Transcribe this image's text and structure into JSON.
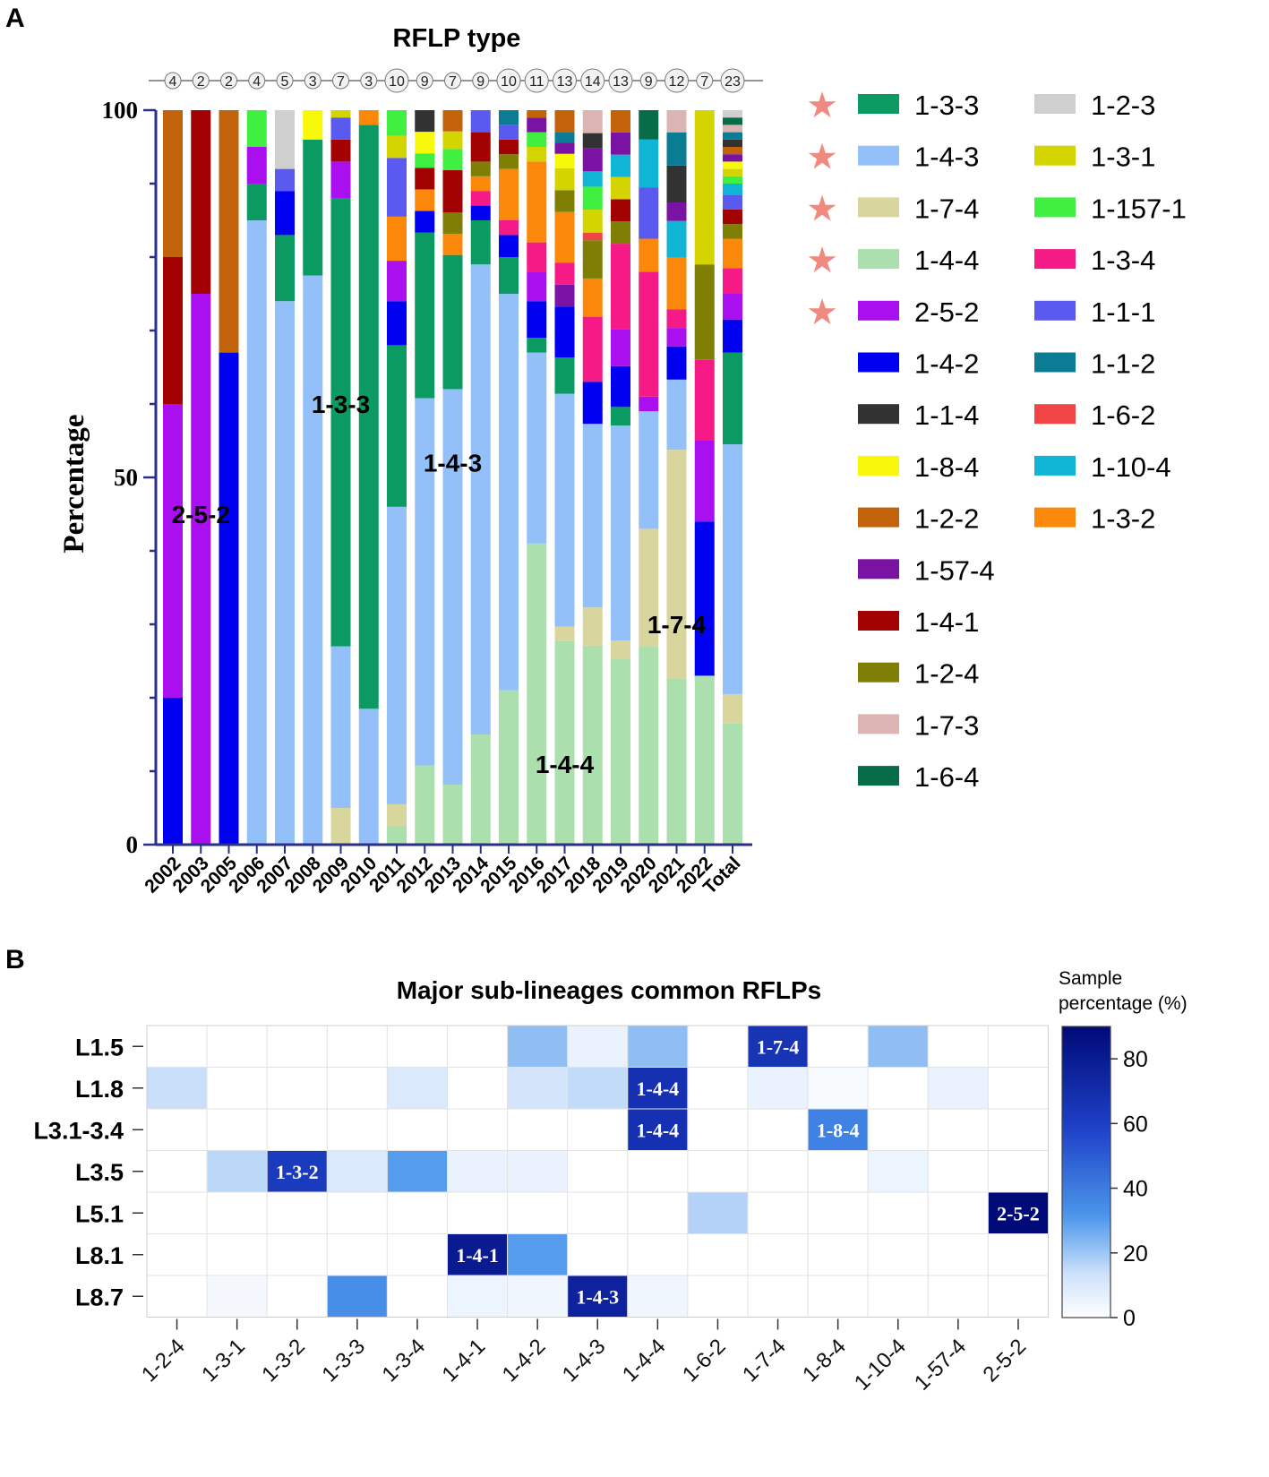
{
  "panels": {
    "a": "A",
    "b": "B"
  },
  "chart_data": [
    {
      "type": "bar",
      "stacked": true,
      "title": "RFLP type",
      "xlabel": "",
      "ylabel": "Percentage",
      "ylim": [
        0,
        100
      ],
      "yticks": [
        "0",
        "50",
        "100"
      ],
      "categories": [
        "2002",
        "2003",
        "2005",
        "2006",
        "2007",
        "2008",
        "2009",
        "2010",
        "2011",
        "2012",
        "2013",
        "2014",
        "2015",
        "2016",
        "2017",
        "2018",
        "2019",
        "2020",
        "2021",
        "2022",
        "Total"
      ],
      "sample_counts": [
        "4",
        "2",
        "2",
        "4",
        "5",
        "3",
        "7",
        "3",
        "10",
        "9",
        "7",
        "9",
        "10",
        "11",
        "13",
        "14",
        "13",
        "9",
        "12",
        "7",
        "23"
      ],
      "legend": [
        {
          "name": "1-3-3",
          "color": "#0a9a62",
          "star": true
        },
        {
          "name": "1-4-3",
          "color": "#93c0f8",
          "star": true
        },
        {
          "name": "1-7-4",
          "color": "#d8d69c",
          "star": true
        },
        {
          "name": "1-4-4",
          "color": "#abdfae",
          "star": true
        },
        {
          "name": "2-5-2",
          "color": "#aa0fef",
          "star": true
        },
        {
          "name": "1-4-2",
          "color": "#0000f0",
          "star": false
        },
        {
          "name": "1-1-4",
          "color": "#323232",
          "star": false
        },
        {
          "name": "1-8-4",
          "color": "#f8f80a",
          "star": false
        },
        {
          "name": "1-2-2",
          "color": "#c2620b",
          "star": false
        },
        {
          "name": "1-57-4",
          "color": "#7a12a4",
          "star": false
        },
        {
          "name": "1-4-1",
          "color": "#a20202",
          "star": false
        },
        {
          "name": "1-2-4",
          "color": "#7f7f05",
          "star": false
        },
        {
          "name": "1-7-3",
          "color": "#ddb4b4",
          "star": false
        },
        {
          "name": "1-6-4",
          "color": "#066d48",
          "star": false
        },
        {
          "name": "1-2-3",
          "color": "#cfcfcf",
          "star": false
        },
        {
          "name": "1-3-1",
          "color": "#d4d400",
          "star": false
        },
        {
          "name": "1-157-1",
          "color": "#40f040",
          "star": false
        },
        {
          "name": "1-3-4",
          "color": "#f51a86",
          "star": false
        },
        {
          "name": "1-1-1",
          "color": "#5a5af0",
          "star": false
        },
        {
          "name": "1-1-2",
          "color": "#0a7d94",
          "star": false
        },
        {
          "name": "1-6-2",
          "color": "#f14545",
          "star": false
        },
        {
          "name": "1-10-4",
          "color": "#10b4d4",
          "star": false
        },
        {
          "name": "1-3-2",
          "color": "#fb880a",
          "star": false
        }
      ],
      "series_stacks": [
        [
          [
            "1-4-2",
            20
          ],
          [
            "2-5-2",
            40
          ],
          [
            "1-4-1",
            20
          ],
          [
            "1-2-2",
            20
          ]
        ],
        [
          [
            "2-5-2",
            75
          ],
          [
            "1-4-1",
            25
          ]
        ],
        [
          [
            "1-4-2",
            67
          ],
          [
            "1-2-2",
            33
          ]
        ],
        [
          [
            "1-4-3",
            85
          ],
          [
            "1-3-3",
            5
          ],
          [
            "2-5-2",
            5
          ],
          [
            "1-157-1",
            5
          ]
        ],
        [
          [
            "1-4-3",
            74
          ],
          [
            "1-3-3",
            9
          ],
          [
            "1-4-2",
            6
          ],
          [
            "1-1-1",
            3
          ],
          [
            "1-2-3",
            8
          ]
        ],
        [
          [
            "1-4-3",
            77.5
          ],
          [
            "1-3-3",
            18.5
          ],
          [
            "1-8-4",
            4
          ]
        ],
        [
          [
            "1-7-4",
            5
          ],
          [
            "1-4-3",
            22
          ],
          [
            "1-3-3",
            61
          ],
          [
            "2-5-2",
            5
          ],
          [
            "1-4-1",
            3
          ],
          [
            "1-1-1",
            3
          ],
          [
            "1-3-1",
            1
          ]
        ],
        [
          [
            "1-4-3",
            18.5
          ],
          [
            "1-3-3",
            79.5
          ],
          [
            "1-3-2",
            2
          ]
        ],
        [
          [
            "1-4-4",
            2.5
          ],
          [
            "1-7-4",
            3
          ],
          [
            "1-4-3",
            40.5
          ],
          [
            "1-3-3",
            22
          ],
          [
            "1-4-2",
            6
          ],
          [
            "2-5-2",
            5.5
          ],
          [
            "1-3-2",
            6
          ],
          [
            "1-1-1",
            8
          ],
          [
            "1-3-1",
            3
          ],
          [
            "1-157-1",
            3.5
          ]
        ],
        [
          [
            "1-4-4",
            11
          ],
          [
            "1-4-3",
            51
          ],
          [
            "1-3-3",
            23
          ],
          [
            "1-4-2",
            3
          ],
          [
            "1-3-2",
            3
          ],
          [
            "1-4-1",
            3
          ],
          [
            "1-157-1",
            2
          ],
          [
            "1-8-4",
            3
          ],
          [
            "1-1-4",
            3
          ]
        ],
        [
          [
            "1-4-4",
            8.5
          ],
          [
            "1-4-3",
            56
          ],
          [
            "1-3-3",
            19
          ],
          [
            "1-3-2",
            3
          ],
          [
            "1-2-4",
            3
          ],
          [
            "1-4-1",
            6
          ],
          [
            "1-157-1",
            3
          ],
          [
            "1-3-1",
            2.5
          ],
          [
            "1-2-2",
            3
          ]
        ],
        [
          [
            "1-4-4",
            15
          ],
          [
            "1-4-3",
            64
          ],
          [
            "1-3-3",
            6
          ],
          [
            "1-4-2",
            2
          ],
          [
            "1-3-4",
            2
          ],
          [
            "1-3-2",
            2
          ],
          [
            "1-2-4",
            2
          ],
          [
            "1-4-1",
            4
          ],
          [
            "1-1-1",
            3
          ]
        ],
        [
          [
            "1-4-4",
            21
          ],
          [
            "1-4-3",
            54
          ],
          [
            "1-3-3",
            5
          ],
          [
            "1-4-2",
            3
          ],
          [
            "1-3-4",
            2
          ],
          [
            "1-3-2",
            7
          ],
          [
            "1-2-4",
            2
          ],
          [
            "1-4-1",
            2
          ],
          [
            "1-1-1",
            2
          ],
          [
            "1-1-2",
            2
          ]
        ],
        [
          [
            "1-4-4",
            41
          ],
          [
            "1-4-3",
            26
          ],
          [
            "1-3-3",
            2
          ],
          [
            "1-4-2",
            5
          ],
          [
            "2-5-2",
            4
          ],
          [
            "1-3-4",
            4
          ],
          [
            "1-3-2",
            11
          ],
          [
            "1-3-1",
            2
          ],
          [
            "1-157-1",
            2
          ],
          [
            "1-57-4",
            2
          ],
          [
            "1-2-2",
            1
          ]
        ],
        [
          [
            "1-4-4",
            28
          ],
          [
            "1-7-4",
            2
          ],
          [
            "1-4-3",
            32
          ],
          [
            "1-3-3",
            5
          ],
          [
            "1-4-2",
            7
          ],
          [
            "1-57-4",
            3
          ],
          [
            "1-3-4",
            3
          ],
          [
            "1-3-2",
            7
          ],
          [
            "1-2-4",
            3
          ],
          [
            "1-3-1",
            3
          ],
          [
            "1-8-4",
            2
          ],
          [
            "1-57-4",
            1.5
          ],
          [
            "1-1-2",
            1.5
          ],
          [
            "1-2-2",
            3
          ]
        ],
        [
          [
            "1-4-4",
            26
          ],
          [
            "1-7-4",
            5
          ],
          [
            "1-4-3",
            24
          ],
          [
            "1-4-2",
            5.5
          ],
          [
            "1-3-4",
            8.5
          ],
          [
            "1-3-2",
            5
          ],
          [
            "1-2-4",
            5
          ],
          [
            "1-6-2",
            1
          ],
          [
            "1-3-1",
            3
          ],
          [
            "1-157-1",
            3
          ],
          [
            "1-10-4",
            2
          ],
          [
            "1-57-4",
            3
          ],
          [
            "1-1-4",
            2
          ],
          [
            "1-7-3",
            3
          ]
        ],
        [
          [
            "1-4-4",
            25
          ],
          [
            "1-7-4",
            2.5
          ],
          [
            "1-4-3",
            29
          ],
          [
            "1-3-3",
            2.5
          ],
          [
            "1-4-2",
            5.5
          ],
          [
            "2-5-2",
            5
          ],
          [
            "1-3-4",
            11.5
          ],
          [
            "1-2-4",
            3
          ],
          [
            "1-4-1",
            3
          ],
          [
            "1-3-1",
            3
          ],
          [
            "1-10-4",
            3
          ],
          [
            "1-57-4",
            3
          ],
          [
            "1-2-2",
            3
          ]
        ],
        [
          [
            "1-4-4",
            27
          ],
          [
            "1-7-4",
            16
          ],
          [
            "1-4-3",
            16
          ],
          [
            "2-5-2",
            2
          ],
          [
            "1-3-4",
            17
          ],
          [
            "1-3-2",
            4.5
          ],
          [
            "1-1-1",
            7
          ],
          [
            "1-10-4",
            6.5
          ],
          [
            "1-6-4",
            4
          ]
        ],
        [
          [
            "1-4-4",
            22.5
          ],
          [
            "1-7-4",
            31
          ],
          [
            "1-4-3",
            9.5
          ],
          [
            "1-4-2",
            4.5
          ],
          [
            "2-5-2",
            2.5
          ],
          [
            "1-3-4",
            2.5
          ],
          [
            "1-3-2",
            7
          ],
          [
            "1-10-4",
            5
          ],
          [
            "1-57-4",
            2.5
          ],
          [
            "1-1-4",
            5
          ],
          [
            "1-1-2",
            4.5
          ],
          [
            "1-7-3",
            3
          ]
        ],
        [
          [
            "1-4-4",
            23
          ],
          [
            "1-7-4",
            0
          ],
          [
            "1-4-2",
            21
          ],
          [
            "2-5-2",
            11
          ],
          [
            "1-3-4",
            11
          ],
          [
            "1-2-4",
            13
          ],
          [
            "1-3-1",
            21
          ]
        ],
        [
          [
            "1-4-4",
            16.5
          ],
          [
            "1-7-4",
            4
          ],
          [
            "1-4-3",
            34
          ],
          [
            "1-3-3",
            12.5
          ],
          [
            "1-4-2",
            4.5
          ],
          [
            "2-5-2",
            3.5
          ],
          [
            "1-3-4",
            3.5
          ],
          [
            "1-3-2",
            4
          ],
          [
            "1-2-4",
            2
          ],
          [
            "1-4-1",
            2
          ],
          [
            "1-1-1",
            2
          ],
          [
            "1-10-4",
            1.5
          ],
          [
            "1-157-1",
            1
          ],
          [
            "1-3-1",
            1
          ],
          [
            "1-8-4",
            1
          ],
          [
            "1-57-4",
            1
          ],
          [
            "1-2-2",
            1
          ],
          [
            "1-1-4",
            1
          ],
          [
            "1-1-2",
            1
          ],
          [
            "1-7-3",
            1
          ],
          [
            "1-6-4",
            1
          ],
          [
            "1-2-3",
            1
          ]
        ]
      ],
      "annotations": [
        {
          "text": "2-5-2",
          "category": "2003",
          "y": 45
        },
        {
          "text": "1-3-3",
          "category": "2009",
          "y": 60
        },
        {
          "text": "1-4-3",
          "category": "2013",
          "y": 52
        },
        {
          "text": "1-4-4",
          "category": "2017",
          "y": 11
        },
        {
          "text": "1-7-4",
          "category": "2021",
          "y": 30
        }
      ]
    },
    {
      "type": "heatmap",
      "title": "Major sub-lineages common RFLPs",
      "colorbar_title_line1": "Sample",
      "colorbar_title_line2": "percentage (%)",
      "colorbar_ticks": [
        "0",
        "20",
        "40",
        "60",
        "80"
      ],
      "colorbar_range": [
        0,
        90
      ],
      "x": [
        "1-2-4",
        "1-3-1",
        "1-3-2",
        "1-3-3",
        "1-3-4",
        "1-4-1",
        "1-4-2",
        "1-4-3",
        "1-4-4",
        "1-6-2",
        "1-7-4",
        "1-8-4",
        "1-10-4",
        "1-57-4",
        "2-5-2"
      ],
      "y": [
        "L1.5",
        "L1.8",
        "L3.1-3.4",
        "L3.5",
        "L5.1",
        "L8.1",
        "L8.7"
      ],
      "values": [
        [
          0,
          0,
          0,
          0,
          0,
          0,
          22,
          6,
          22,
          0,
          66,
          0,
          22,
          0,
          0
        ],
        [
          14,
          0,
          0,
          0,
          10,
          0,
          12,
          15,
          68,
          0,
          6,
          2,
          0,
          6,
          0
        ],
        [
          0,
          0,
          0,
          0,
          0,
          0,
          0,
          0,
          68,
          0,
          0,
          38,
          0,
          0,
          0
        ],
        [
          0,
          16,
          62,
          10,
          30,
          6,
          6,
          0,
          0,
          0,
          0,
          0,
          5,
          0,
          0
        ],
        [
          0,
          0,
          0,
          0,
          0,
          0,
          0,
          0,
          0,
          17,
          0,
          0,
          0,
          0,
          90
        ],
        [
          0,
          0,
          0,
          0,
          0,
          80,
          30,
          0,
          0,
          0,
          0,
          0,
          0,
          0,
          0
        ],
        [
          0,
          3,
          0,
          34,
          0,
          5,
          4,
          76,
          4,
          0,
          0,
          0,
          0,
          0,
          0
        ]
      ],
      "cell_labels": [
        {
          "row": 0,
          "col": 10,
          "text": "1-7-4"
        },
        {
          "row": 1,
          "col": 8,
          "text": "1-4-4"
        },
        {
          "row": 2,
          "col": 8,
          "text": "1-4-4"
        },
        {
          "row": 2,
          "col": 11,
          "text": "1-8-4"
        },
        {
          "row": 3,
          "col": 2,
          "text": "1-3-2"
        },
        {
          "row": 4,
          "col": 14,
          "text": "2-5-2"
        },
        {
          "row": 5,
          "col": 5,
          "text": "1-4-1"
        },
        {
          "row": 6,
          "col": 7,
          "text": "1-4-3"
        }
      ]
    }
  ]
}
